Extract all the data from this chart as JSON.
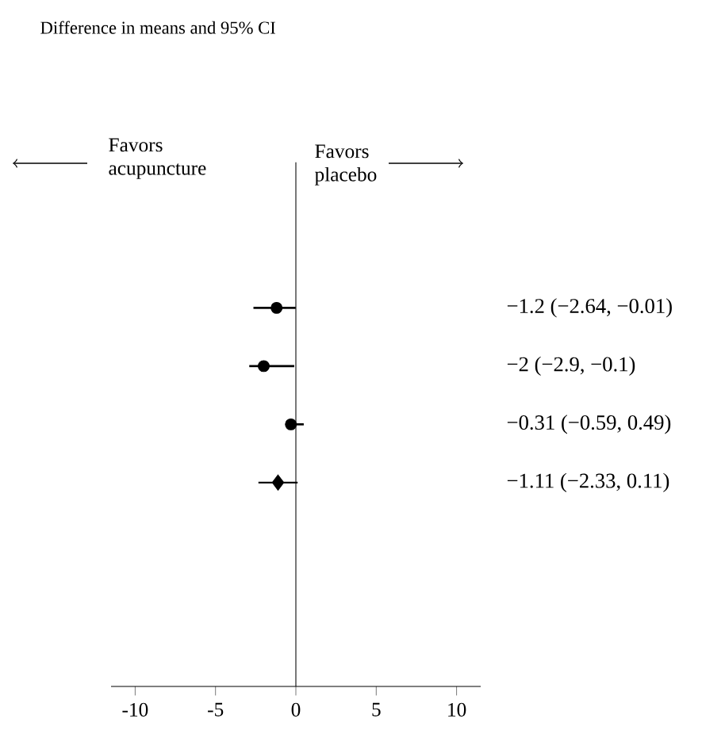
{
  "chart_data": {
    "type": "scatter",
    "orientation": "horizontal",
    "title": "Difference in means and 95% CI",
    "categories": [
      null,
      null,
      null,
      null,
      null,
      null,
      null,
      null,
      null
    ],
    "series": [
      {
        "type": "scatter",
        "marker": "circle",
        "color": "#000000",
        "values": [
          null,
          null,
          -1.2,
          -2,
          -0.31,
          null,
          null,
          null,
          null
        ],
        "errors": [
          null,
          null,
          [
            -2.64,
            -0.01
          ],
          [
            -2.9,
            -0.1
          ],
          [
            -0.59,
            0.49
          ],
          null,
          null,
          null,
          null
        ]
      },
      {
        "type": "scatter",
        "marker": "diamond",
        "color": "#000000",
        "values": [
          null,
          null,
          null,
          null,
          null,
          -1.11,
          null,
          null,
          null
        ],
        "errors": [
          null,
          null,
          null,
          null,
          null,
          [
            -2.33,
            0.11
          ],
          null,
          null,
          null
        ]
      }
    ],
    "xlim": [
      -11.5,
      11.5
    ],
    "xticks": [
      -10,
      -5,
      0,
      5,
      10
    ],
    "tick_labels": "x",
    "ref_lines": [
      {
        "axis": "x",
        "value": 0
      }
    ],
    "annotations": [
      "Favors acupuncture",
      "Favors placebo",
      "−1.2 (−2.64, −0.01)",
      "−2 (−2.9, −0.1)",
      "−0.31 (−0.59, 0.49)",
      "−1.11 (−2.33, 0.11)"
    ]
  }
}
